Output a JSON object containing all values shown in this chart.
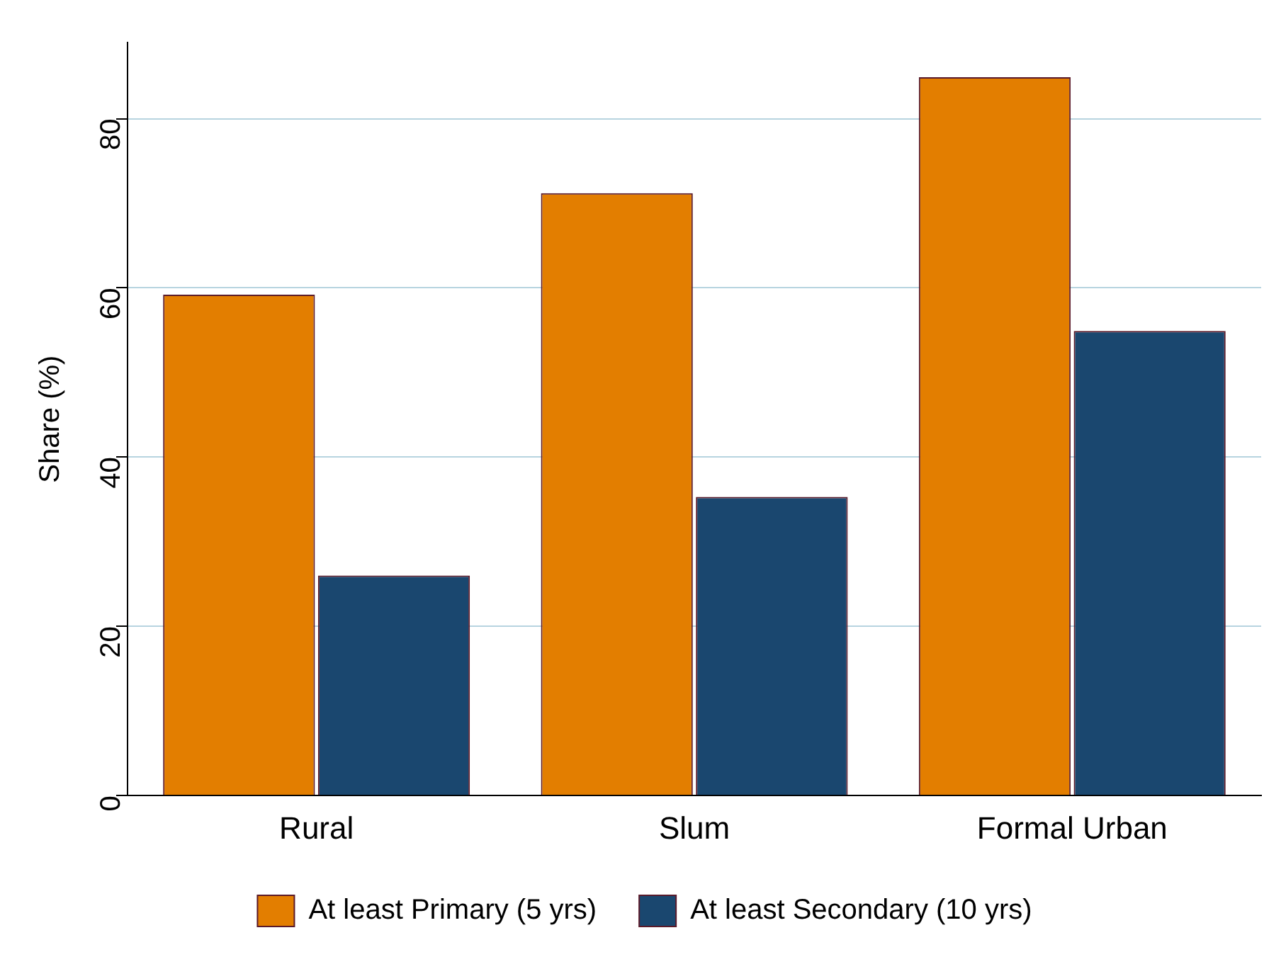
{
  "chart_data": {
    "type": "bar",
    "ylabel": "Share (%)",
    "categories": [
      "Rural",
      "Slum",
      "Formal Urban"
    ],
    "series": [
      {
        "name": "At least Primary (5 yrs)",
        "color": "#e37e00",
        "values": [
          59.2,
          71.2,
          84.9
        ]
      },
      {
        "name": "At least Secondary (10 yrs)",
        "color": "#1a476f",
        "values": [
          26.0,
          35.3,
          54.9
        ]
      }
    ],
    "ylim": [
      0,
      89
    ],
    "yticks": [
      0,
      20,
      40,
      60,
      80
    ],
    "grid": "y",
    "legend": "bottom"
  }
}
